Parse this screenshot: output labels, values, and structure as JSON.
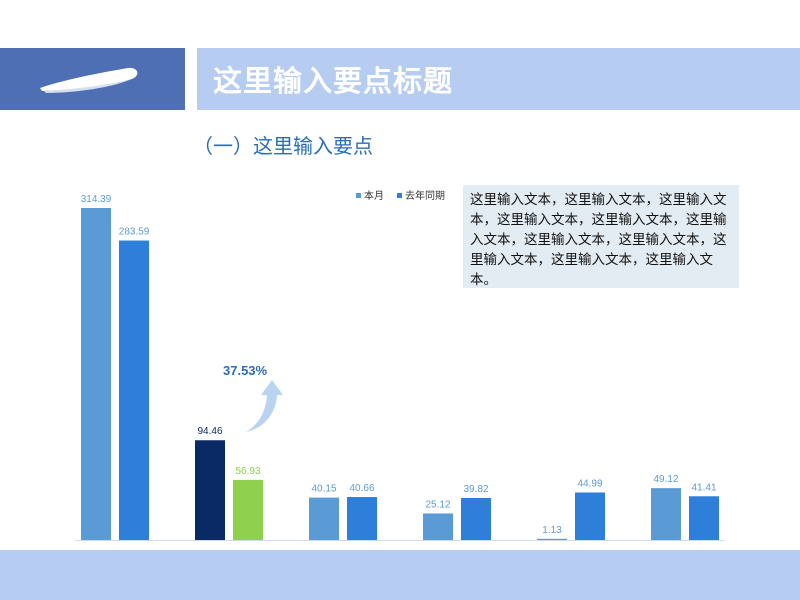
{
  "header": {
    "title": "这里输入要点标题"
  },
  "subtitle": "（一）这里输入要点",
  "textbox": {
    "text": "这里输入文本，这里输入文本，这里输入文本，这里输入文本，这里输入文本，这里输入文本，这里输入文本，这里输入文本，这里输入文本，这里输入文本，这里输入文本。"
  },
  "annotation": {
    "label": "37.53%"
  },
  "colors": {
    "header_dark": "#4f6fb5",
    "header_light": "#b6cdf1",
    "series_1": "#5b9bd5",
    "series_2": "#2e7fd9",
    "highlight_1": "#0a2a66",
    "highlight_2": "#8fd14f",
    "label_text": "#5b9bd5"
  },
  "chart_data": {
    "type": "bar",
    "categories": [
      "",
      "",
      "",
      "",
      "",
      ""
    ],
    "series": [
      {
        "name": "本月",
        "values": [
          314.39,
          94.46,
          40.15,
          25.12,
          1.13,
          49.12
        ]
      },
      {
        "name": "去年同期",
        "values": [
          283.59,
          56.93,
          40.66,
          39.82,
          44.99,
          41.41
        ]
      }
    ],
    "highlight_group": 1,
    "legend_position": "top",
    "grid": false,
    "ylim": [
      0,
      314.39
    ]
  }
}
